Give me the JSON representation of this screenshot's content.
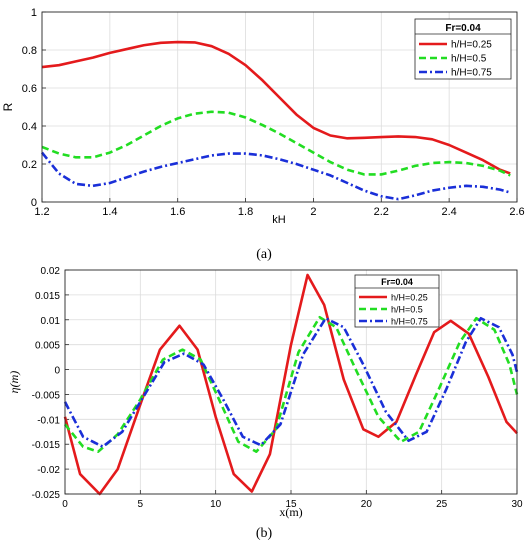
{
  "chart_data": [
    {
      "type": "line",
      "panel_label": "(a)",
      "xlabel": "kH",
      "ylabel": "R",
      "xlim": [
        1.2,
        2.6
      ],
      "ylim": [
        0,
        1
      ],
      "xticks": [
        "1.2",
        "1.4",
        "1.6",
        "1.8",
        "2",
        "2.2",
        "2.4",
        "2.6"
      ],
      "yticks": [
        "0",
        "0.2",
        "0.4",
        "0.6",
        "0.8",
        "1"
      ],
      "grid": true,
      "legend": {
        "title": "Fr=0.04",
        "position": "top-right"
      },
      "series": [
        {
          "name": "h/H=0.25",
          "color": "#e41a1c",
          "dash": "solid",
          "x": [
            1.2,
            1.25,
            1.3,
            1.35,
            1.4,
            1.45,
            1.5,
            1.55,
            1.6,
            1.65,
            1.7,
            1.75,
            1.8,
            1.85,
            1.9,
            1.95,
            2.0,
            2.05,
            2.1,
            2.15,
            2.2,
            2.25,
            2.3,
            2.35,
            2.4,
            2.45,
            2.5,
            2.55,
            2.58
          ],
          "y": [
            0.71,
            0.72,
            0.74,
            0.76,
            0.785,
            0.805,
            0.825,
            0.838,
            0.842,
            0.84,
            0.82,
            0.78,
            0.72,
            0.64,
            0.55,
            0.46,
            0.39,
            0.35,
            0.335,
            0.338,
            0.342,
            0.345,
            0.342,
            0.33,
            0.3,
            0.26,
            0.22,
            0.17,
            0.15
          ]
        },
        {
          "name": "h/H=0.5",
          "color": "#22dd22",
          "dash": "dashed",
          "x": [
            1.2,
            1.25,
            1.3,
            1.35,
            1.4,
            1.45,
            1.5,
            1.55,
            1.6,
            1.65,
            1.7,
            1.75,
            1.8,
            1.85,
            1.9,
            1.95,
            2.0,
            2.05,
            2.1,
            2.15,
            2.2,
            2.25,
            2.3,
            2.35,
            2.4,
            2.45,
            2.5,
            2.55,
            2.58
          ],
          "y": [
            0.29,
            0.255,
            0.235,
            0.235,
            0.26,
            0.3,
            0.35,
            0.4,
            0.44,
            0.465,
            0.475,
            0.47,
            0.445,
            0.405,
            0.36,
            0.31,
            0.26,
            0.21,
            0.17,
            0.145,
            0.145,
            0.165,
            0.19,
            0.205,
            0.21,
            0.205,
            0.19,
            0.165,
            0.14
          ]
        },
        {
          "name": "h/H=0.75",
          "color": "#1a2fd8",
          "dash": "dashdot",
          "x": [
            1.2,
            1.25,
            1.3,
            1.35,
            1.4,
            1.45,
            1.5,
            1.55,
            1.6,
            1.65,
            1.7,
            1.75,
            1.8,
            1.85,
            1.9,
            1.95,
            2.0,
            2.05,
            2.1,
            2.15,
            2.2,
            2.25,
            2.3,
            2.35,
            2.4,
            2.45,
            2.5,
            2.55,
            2.58
          ],
          "y": [
            0.26,
            0.15,
            0.095,
            0.085,
            0.1,
            0.13,
            0.16,
            0.185,
            0.205,
            0.225,
            0.245,
            0.255,
            0.255,
            0.245,
            0.225,
            0.2,
            0.17,
            0.14,
            0.1,
            0.06,
            0.03,
            0.015,
            0.035,
            0.06,
            0.075,
            0.085,
            0.08,
            0.065,
            0.05
          ]
        }
      ]
    },
    {
      "type": "line",
      "panel_label": "(b)",
      "xlabel": "x(m)",
      "ylabel": "η(m)",
      "xlim": [
        0,
        30
      ],
      "ylim": [
        -0.025,
        0.02
      ],
      "xticks": [
        "0",
        "5",
        "10",
        "15",
        "20",
        "25",
        "30"
      ],
      "yticks": [
        "-0.025",
        "-0.02",
        "-0.015",
        "-0.01",
        "-0.005",
        "0",
        "0.005",
        "0.01",
        "0.015",
        "0.02"
      ],
      "grid": true,
      "legend": {
        "title": "Fr=0.04",
        "position": "top-right"
      },
      "series": [
        {
          "name": "h/H=0.25",
          "color": "#e41a1c",
          "dash": "solid",
          "x": [
            0,
            1,
            2.3,
            3.5,
            5,
            6.3,
            7.6,
            8.8,
            10,
            11.2,
            12.4,
            13.6,
            15,
            16.1,
            17.2,
            18.5,
            19.8,
            20.8,
            22,
            23.3,
            24.5,
            25.6,
            26.8,
            28.1,
            29.3,
            30
          ],
          "y": [
            -0.0095,
            -0.021,
            -0.025,
            -0.02,
            -0.007,
            0.004,
            0.0088,
            0.004,
            -0.0095,
            -0.021,
            -0.0245,
            -0.017,
            0.005,
            0.019,
            0.013,
            -0.002,
            -0.012,
            -0.0135,
            -0.0105,
            -0.001,
            0.0075,
            0.0098,
            0.0072,
            -0.0015,
            -0.0105,
            -0.0128
          ]
        },
        {
          "name": "h/H=0.5",
          "color": "#22dd22",
          "dash": "dashed",
          "x": [
            0,
            1.2,
            2.2,
            3.5,
            5,
            6.5,
            7.8,
            9,
            10.3,
            11.5,
            12.7,
            14,
            15.5,
            16.9,
            18,
            19.3,
            20.8,
            22.3,
            23.5,
            24.8,
            26.2,
            27.3,
            28.5,
            29.5,
            30
          ],
          "y": [
            -0.011,
            -0.0155,
            -0.0165,
            -0.013,
            -0.006,
            0.002,
            0.004,
            0.002,
            -0.0065,
            -0.0145,
            -0.0165,
            -0.012,
            0.0035,
            0.0105,
            0.0085,
            0.0,
            -0.0095,
            -0.0145,
            -0.0125,
            -0.004,
            0.0055,
            0.0103,
            0.008,
            0.001,
            -0.005
          ]
        },
        {
          "name": "h/H=0.75",
          "color": "#1a2fd8",
          "dash": "dashdot",
          "x": [
            0,
            1.2,
            2.5,
            3.8,
            5.2,
            6.6,
            7.9,
            9.2,
            10.5,
            11.8,
            13,
            14.3,
            15.8,
            17.3,
            18.5,
            19.8,
            21.3,
            22.8,
            24,
            25.3,
            26.6,
            27.6,
            28.8,
            29.7,
            30
          ],
          "y": [
            -0.0065,
            -0.0135,
            -0.0155,
            -0.0125,
            -0.0055,
            0.0015,
            0.0032,
            0.001,
            -0.006,
            -0.0135,
            -0.0152,
            -0.011,
            0.003,
            0.0103,
            0.0085,
            0.001,
            -0.0085,
            -0.0143,
            -0.0125,
            -0.004,
            0.0055,
            0.0103,
            0.0085,
            0.003,
            -0.0005
          ]
        }
      ]
    }
  ]
}
